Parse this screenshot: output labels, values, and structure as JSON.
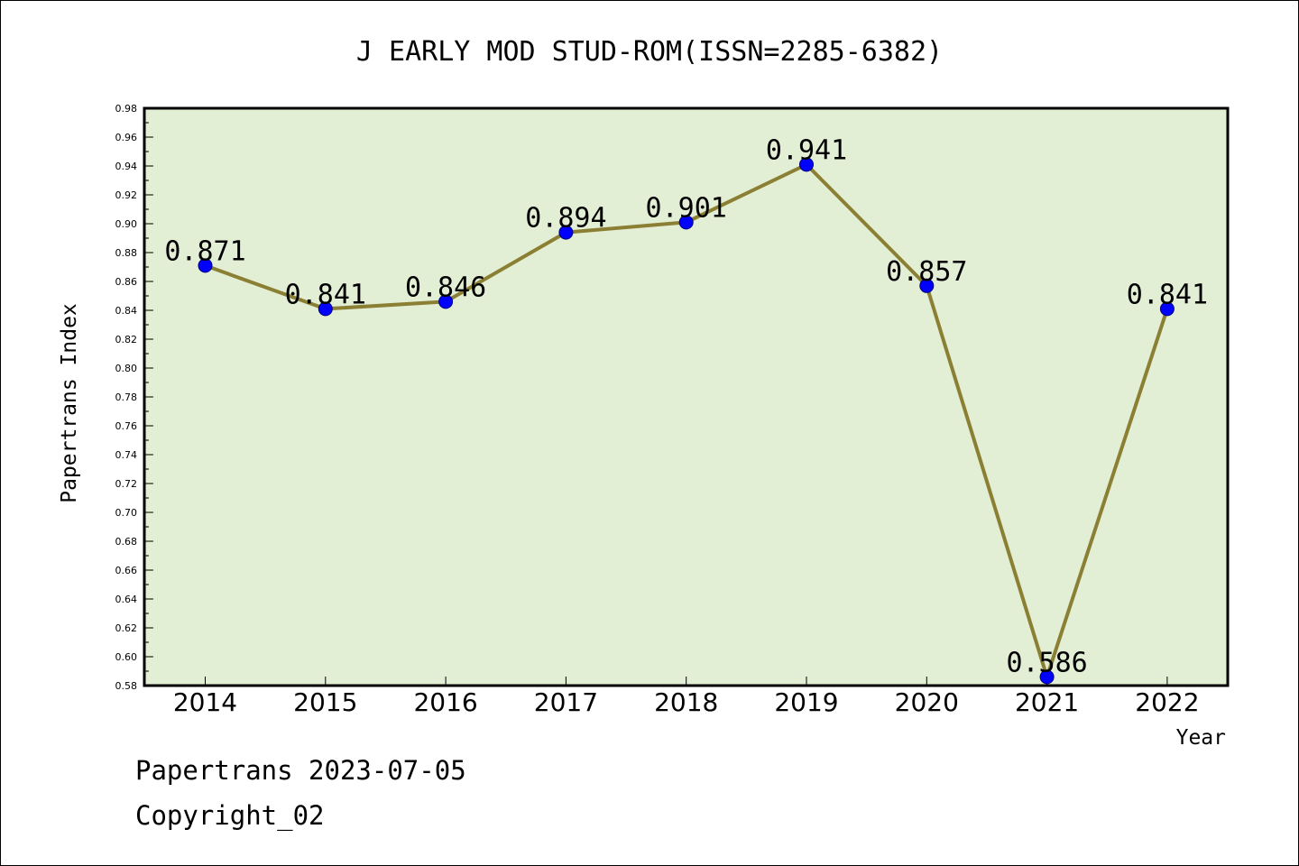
{
  "chart_data": {
    "type": "line",
    "title": "J EARLY MOD STUD-ROM(ISSN=2285-6382)",
    "xlabel": "Year",
    "ylabel": "Papertrans Index",
    "categories": [
      "2014",
      "2015",
      "2016",
      "2017",
      "2018",
      "2019",
      "2020",
      "2021",
      "2022"
    ],
    "values": [
      0.871,
      0.841,
      0.846,
      0.894,
      0.901,
      0.941,
      0.857,
      0.586,
      0.841
    ],
    "data_labels": [
      "0.871",
      "0.841",
      "0.846",
      "0.894",
      "0.901",
      "0.941",
      "0.857",
      "0.586",
      "0.841"
    ],
    "ylim": [
      0.58,
      0.98
    ],
    "yticks": [
      "0.58",
      "0.60",
      "0.62",
      "0.64",
      "0.66",
      "0.68",
      "0.70",
      "0.72",
      "0.74",
      "0.76",
      "0.78",
      "0.80",
      "0.82",
      "0.84",
      "0.86",
      "0.88",
      "0.90",
      "0.92",
      "0.94",
      "0.96",
      "0.98"
    ],
    "grid": false,
    "colors": {
      "plot_background": "#e2efd5",
      "line": "#8b7f33",
      "marker": "#0000ff"
    }
  },
  "footer": {
    "source": "Papertrans 2023-07-05",
    "copyright": "Copyright_02"
  }
}
